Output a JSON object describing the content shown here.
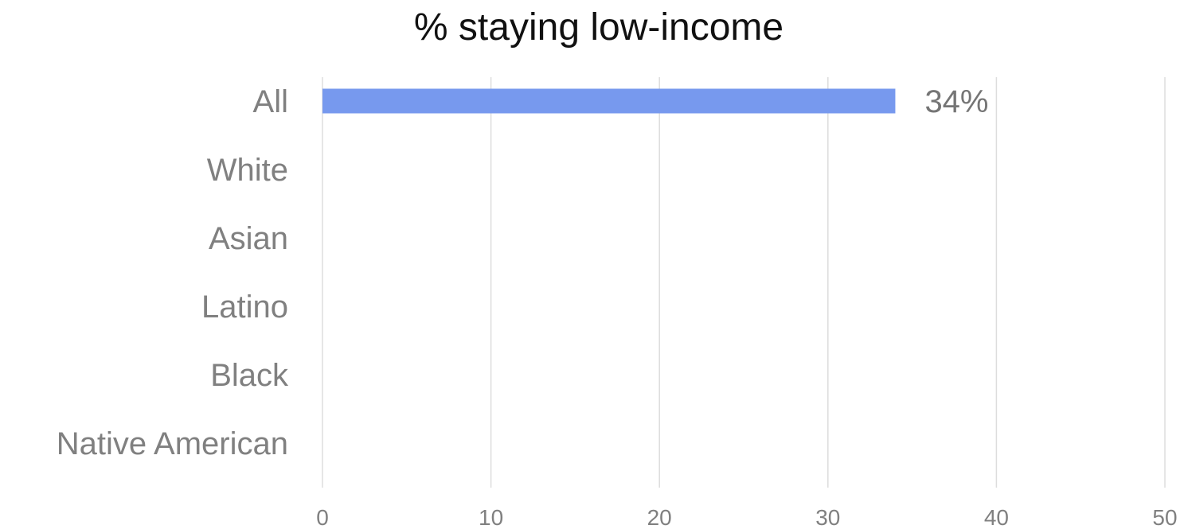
{
  "chart_data": {
    "type": "bar",
    "orientation": "horizontal",
    "title": "% staying low-income",
    "categories": [
      "All",
      "White",
      "Asian",
      "Latino",
      "Black",
      "Native American"
    ],
    "values": [
      34,
      null,
      null,
      null,
      null,
      null
    ],
    "data_labels": [
      "34%",
      "",
      "",
      "",
      "",
      ""
    ],
    "xlim": [
      0,
      50
    ],
    "x_ticks": [
      0,
      10,
      20,
      30,
      40,
      50
    ],
    "x_tick_labels": [
      "0",
      "10",
      "20",
      "30",
      "40",
      "50"
    ],
    "xlabel": "",
    "ylabel": "",
    "grid": true,
    "legend": "none",
    "bar_color": "#7799ee"
  }
}
